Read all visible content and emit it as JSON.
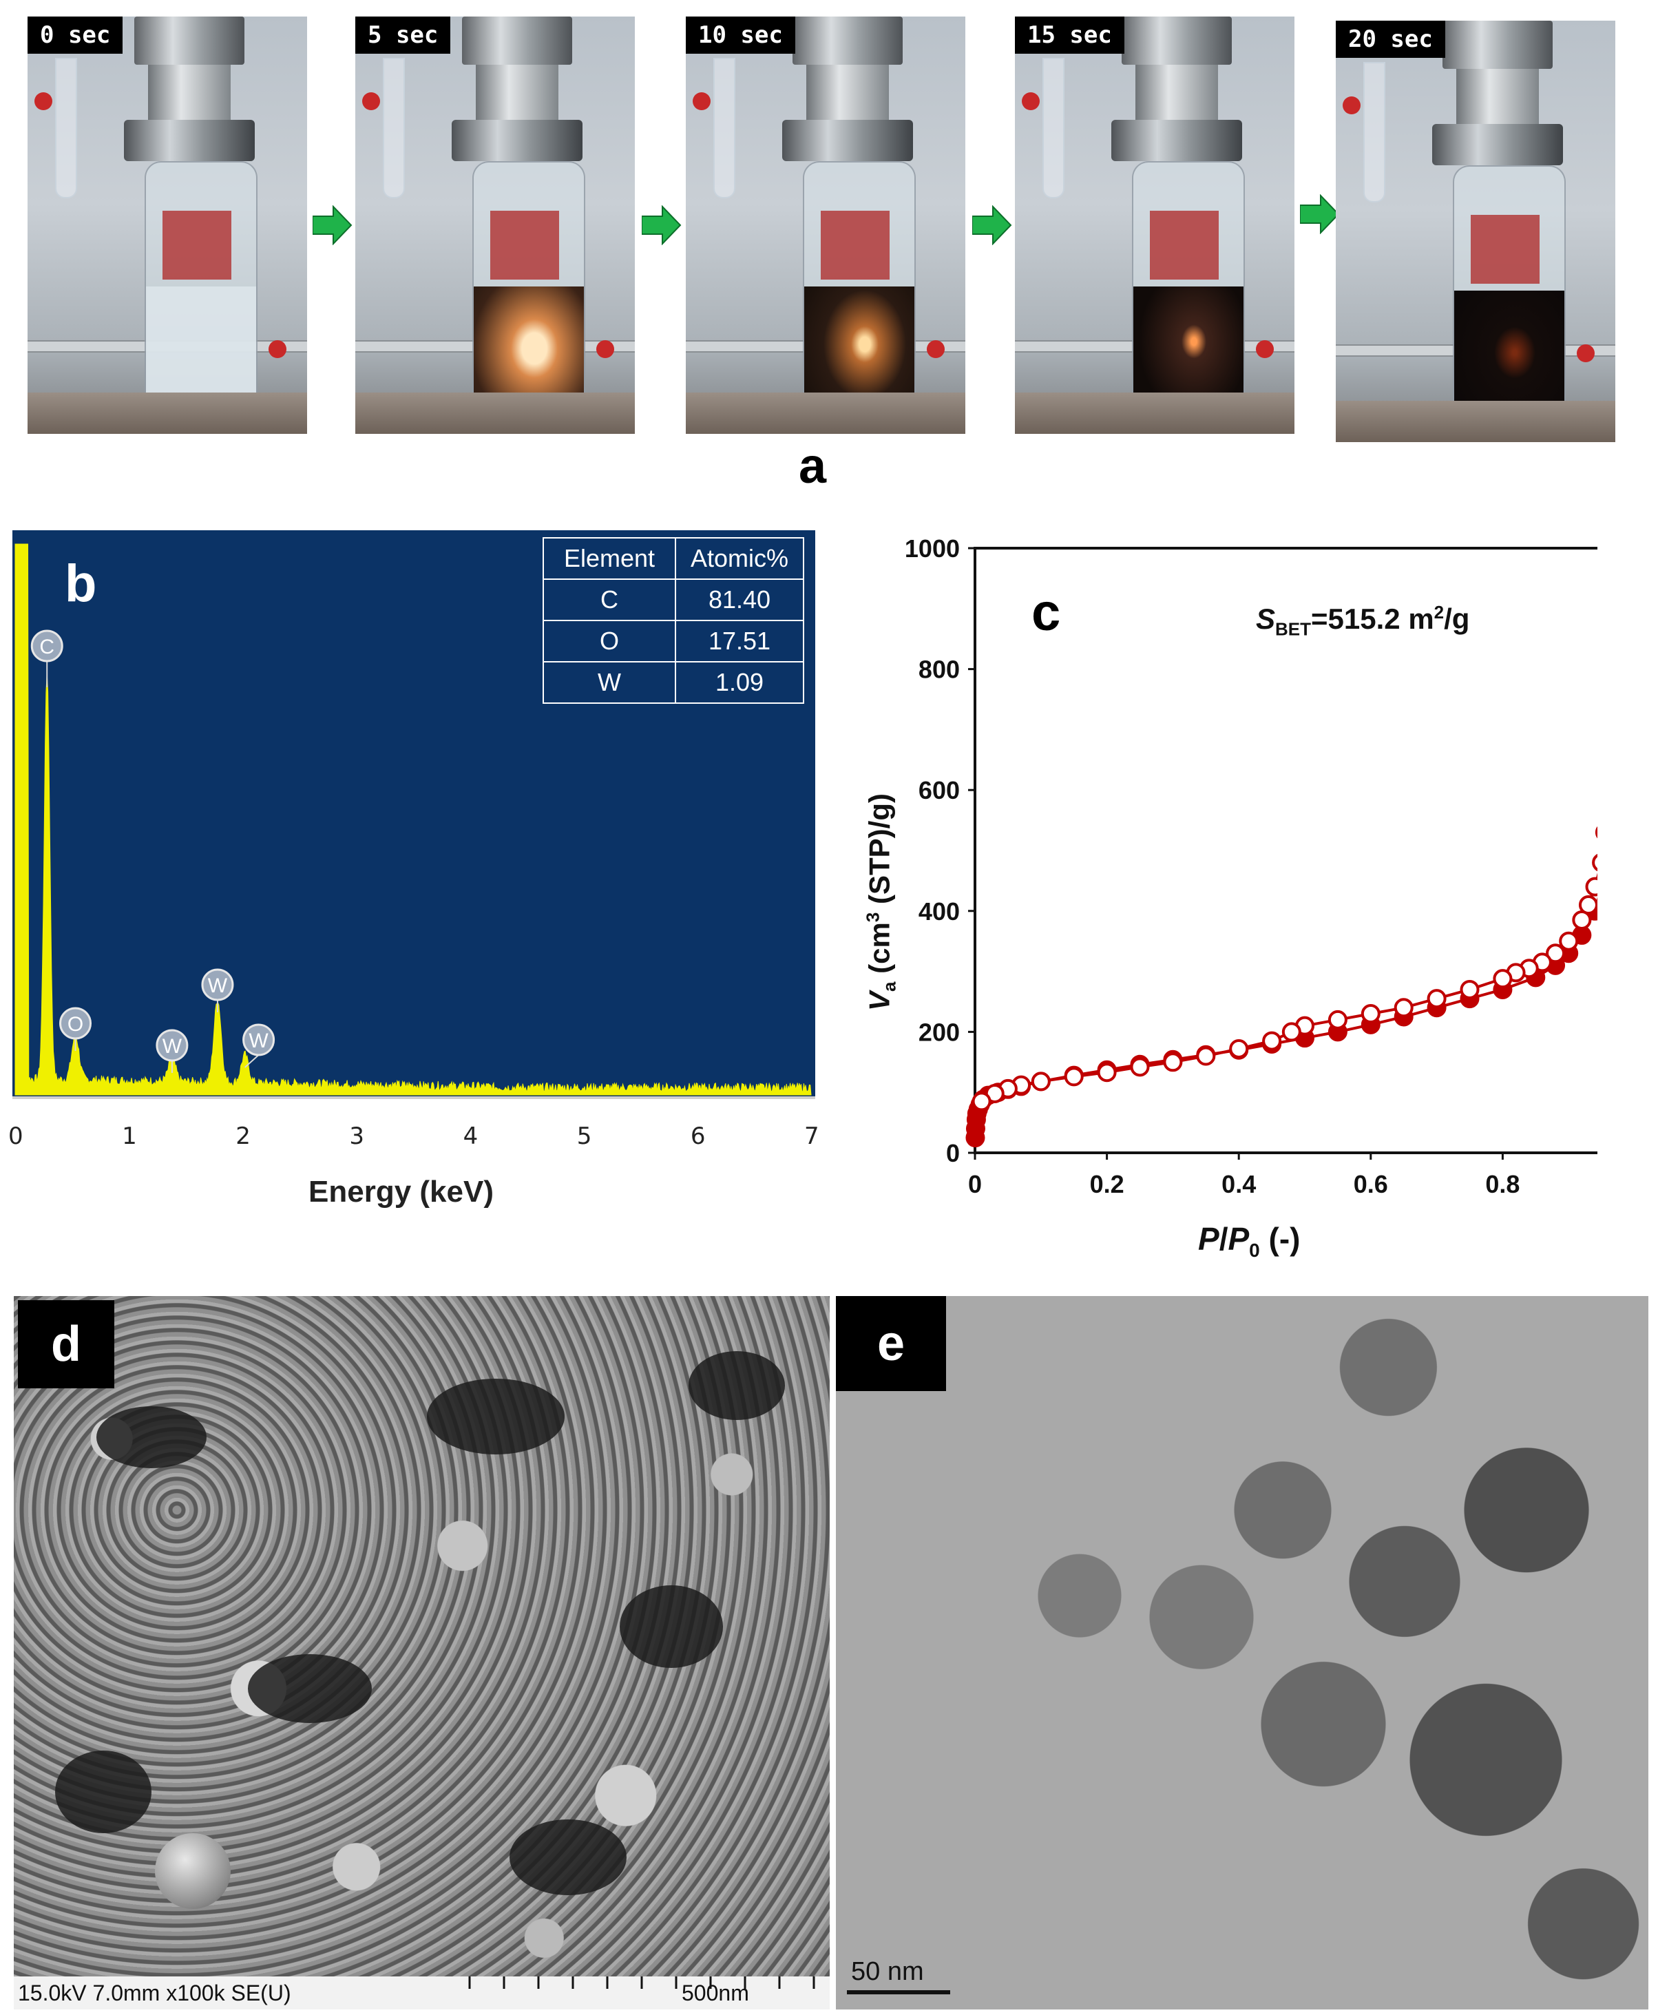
{
  "panel_a": {
    "letter": "a",
    "frames": [
      {
        "time": "0 sec"
      },
      {
        "time": "5 sec"
      },
      {
        "time": "10 sec"
      },
      {
        "time": "15 sec"
      },
      {
        "time": "20 sec"
      }
    ],
    "arrow_color": "#1fb34a"
  },
  "panel_b": {
    "letter": "b",
    "background": "#0b3366",
    "spectrum_color": "#f0f000",
    "table": {
      "headers": [
        "Element",
        "Atomic%"
      ],
      "rows": [
        {
          "element": "C",
          "value": "81.40"
        },
        {
          "element": "O",
          "value": "17.51"
        },
        {
          "element": "W",
          "value": "1.09"
        }
      ]
    },
    "peak_labels": [
      "C",
      "O",
      "W",
      "W",
      "W"
    ]
  },
  "panel_c": {
    "letter": "c",
    "annotation": {
      "s": "S",
      "sub": "BET",
      "value": "=515.2  m",
      "sup": "2",
      "unit": "/g"
    },
    "marker_color": "#c00000"
  },
  "panel_d": {
    "letter": "d",
    "info_bar": "15.0kV 7.0mm x100k SE(U)",
    "scale_label": "500nm"
  },
  "panel_e": {
    "letter": "e",
    "scale_label": "50 nm"
  },
  "chart_data": [
    {
      "type": "bar",
      "panel": "b",
      "xlabel": "Energy (keV)",
      "xlim": [
        0,
        7
      ],
      "xticks": [
        "0",
        "1",
        "2",
        "3",
        "4",
        "5",
        "6",
        "7"
      ],
      "ylim": [
        0,
        100
      ],
      "peaks": [
        {
          "label": "C",
          "x": 0.28,
          "y": 74
        },
        {
          "label": "O",
          "x": 0.53,
          "y": 8
        },
        {
          "label": "W",
          "x": 1.38,
          "y": 4
        },
        {
          "label": "W",
          "x": 1.78,
          "y": 15
        },
        {
          "label": "W",
          "x": 2.02,
          "y": 5
        }
      ]
    },
    {
      "type": "scatter",
      "panel": "c",
      "xlabel_parts": {
        "p": "P",
        "slash": "/",
        "p0": "P",
        "sub": "0",
        "tail": " (-)"
      },
      "ylabel_parts": {
        "v": "V",
        "sub": "a",
        "mid": " (cm",
        "sup": "3",
        "tail": " (STP)/g)"
      },
      "xlim": [
        0,
        1
      ],
      "ylim": [
        0,
        1000
      ],
      "xticks": [
        "0",
        "0.2",
        "0.4",
        "0.6",
        "0.8",
        "1"
      ],
      "yticks": [
        "0",
        "200",
        "400",
        "600",
        "800",
        "1000"
      ],
      "series": [
        {
          "kind": "adsorption",
          "marker": "filled",
          "x": [
            0.0005,
            0.001,
            0.002,
            0.003,
            0.005,
            0.008,
            0.012,
            0.02,
            0.035,
            0.05,
            0.07,
            0.1,
            0.15,
            0.2,
            0.25,
            0.3,
            0.35,
            0.4,
            0.45,
            0.5,
            0.55,
            0.6,
            0.65,
            0.7,
            0.75,
            0.8,
            0.85,
            0.88,
            0.9,
            0.92,
            0.94,
            0.95,
            0.96,
            0.965,
            0.97,
            0.975,
            0.98,
            0.985,
            0.99
          ],
          "y": [
            25,
            40,
            55,
            65,
            72,
            80,
            88,
            95,
            100,
            105,
            110,
            118,
            128,
            137,
            146,
            154,
            162,
            170,
            180,
            190,
            200,
            212,
            225,
            240,
            255,
            270,
            290,
            310,
            330,
            360,
            400,
            440,
            500,
            560,
            620,
            700,
            780,
            840,
            865
          ]
        },
        {
          "kind": "desorption",
          "marker": "open",
          "x": [
            0.99,
            0.985,
            0.98,
            0.975,
            0.97,
            0.965,
            0.96,
            0.955,
            0.95,
            0.94,
            0.93,
            0.92,
            0.9,
            0.88,
            0.86,
            0.84,
            0.82,
            0.8,
            0.75,
            0.7,
            0.65,
            0.6,
            0.55,
            0.5,
            0.48,
            0.45,
            0.4,
            0.35,
            0.3,
            0.25,
            0.2,
            0.15,
            0.1,
            0.07,
            0.05,
            0.03,
            0.01
          ],
          "y": [
            865,
            850,
            810,
            760,
            700,
            640,
            580,
            530,
            480,
            440,
            410,
            385,
            350,
            330,
            315,
            305,
            298,
            288,
            270,
            255,
            240,
            230,
            220,
            210,
            200,
            185,
            172,
            160,
            150,
            142,
            133,
            126,
            118,
            112,
            106,
            98,
            85
          ]
        }
      ]
    }
  ]
}
